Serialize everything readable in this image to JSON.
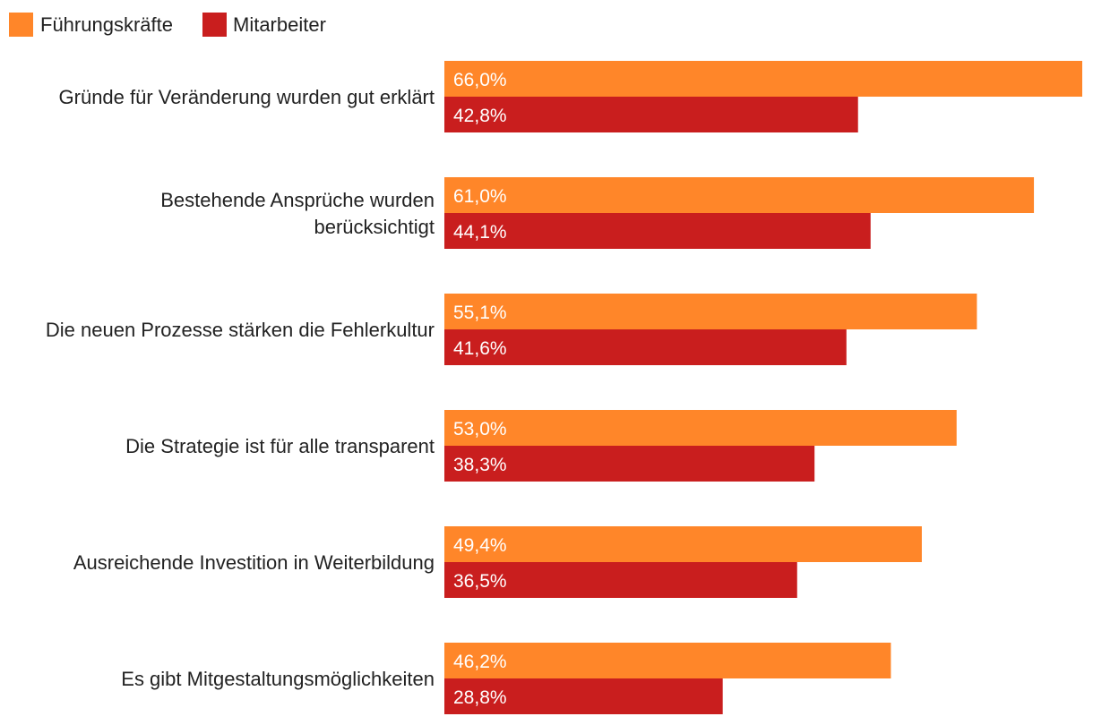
{
  "chart_data": {
    "type": "bar",
    "orientation": "horizontal",
    "categories": [
      [
        "Gründe für Veränderung wurden gut erklärt"
      ],
      [
        "Bestehende Ansprüche wurden",
        "berücksichtigt"
      ],
      [
        "Die neuen Prozesse stärken die Fehlerkultur"
      ],
      [
        "Die Strategie ist für alle transparent"
      ],
      [
        "Ausreichende Investition in Weiterbildung"
      ],
      [
        "Es gibt Mitgestaltungsmöglichkeiten"
      ]
    ],
    "series": [
      {
        "name": "Führungskräfte",
        "color": "#ff8629",
        "values": [
          66.0,
          61.0,
          55.1,
          53.0,
          49.4,
          46.2
        ],
        "labels": [
          "66,0%",
          "61,0%",
          "55,1%",
          "53,0%",
          "49,4%",
          "46,2%"
        ]
      },
      {
        "name": "Mitarbeiter",
        "color": "#c91e1e",
        "values": [
          42.8,
          44.1,
          41.6,
          38.3,
          36.5,
          28.8
        ],
        "labels": [
          "42,8%",
          "44,1%",
          "41,6%",
          "38,3%",
          "36,5%",
          "28,8%"
        ]
      }
    ],
    "xlim": [
      0,
      66
    ],
    "grid": false,
    "legend_position": "top-left"
  }
}
